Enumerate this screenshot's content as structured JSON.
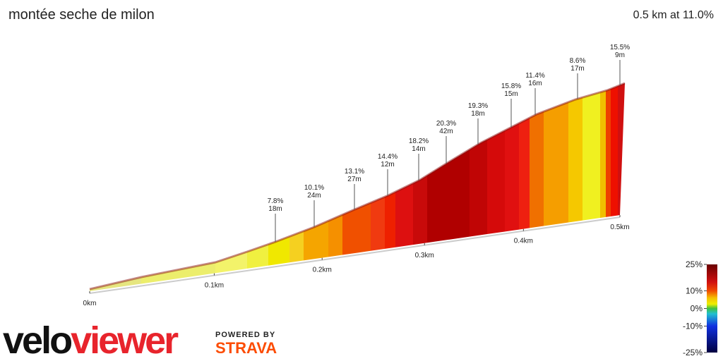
{
  "chart_data": {
    "type": "profile",
    "title": "montée seche de milon",
    "subtitle": "0.5 km at 11.0%",
    "annotations": {
      "grades": [
        7.8,
        10.1,
        13.1,
        14.4,
        18.2,
        20.3,
        19.3,
        15.8,
        11.4,
        8.6,
        15.5
      ],
      "grade_labels": [
        "7.8%",
        "10.1%",
        "13.1%",
        "14.4%",
        "18.2%",
        "20.3%",
        "19.3%",
        "15.8%",
        "11.4%",
        "8.6%",
        "15.5%"
      ],
      "lengths": [
        18,
        24,
        27,
        12,
        14,
        42,
        18,
        15,
        16,
        17,
        9
      ],
      "length_labels": [
        "18m",
        "24m",
        "27m",
        "12m",
        "14m",
        "42m",
        "18m",
        "15m",
        "16m",
        "17m",
        "9m"
      ]
    },
    "xlim": [
      0,
      0.5
    ],
    "xticks": [
      {
        "value": 0,
        "label": "0km"
      },
      {
        "value": 0.1,
        "label": "0.1km"
      },
      {
        "value": 0.2,
        "label": "0.2km"
      },
      {
        "value": 0.3,
        "label": "0.3km"
      },
      {
        "value": 0.4,
        "label": "0.4km"
      },
      {
        "value": 0.5,
        "label": "0.5km"
      }
    ],
    "colorbar": {
      "lim": [
        -25,
        25
      ],
      "ticks": [
        {
          "value": 25,
          "label": "25%"
        },
        {
          "value": 10,
          "label": "10%"
        },
        {
          "value": 0,
          "label": "0%"
        },
        {
          "value": -10,
          "label": "-10%"
        },
        {
          "value": -25,
          "label": "-25%"
        }
      ]
    },
    "logo": {
      "velo": "velo",
      "viewer": "viewer",
      "powered_by": "POWERED BY",
      "strava": "STRAVA"
    }
  }
}
